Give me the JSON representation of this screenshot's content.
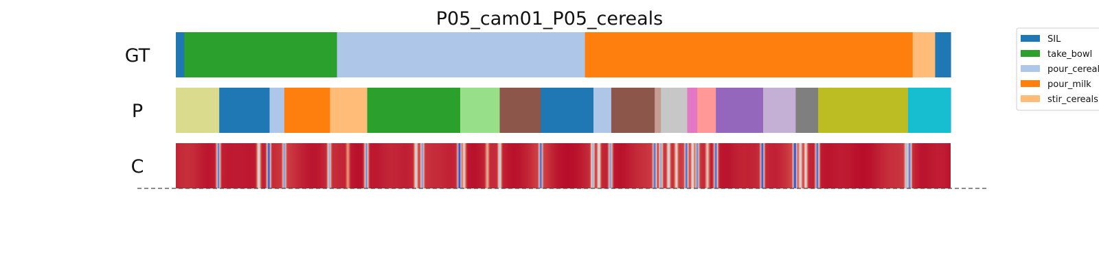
{
  "chart_data": {
    "type": "segmentation-timeline",
    "title": "P05_cam01_P05_cereals",
    "rows": [
      {
        "label": "GT",
        "segments": [
          {
            "start": 0.0,
            "end": 0.011,
            "action": "SIL"
          },
          {
            "start": 0.011,
            "end": 0.208,
            "action": "take_bowl"
          },
          {
            "start": 0.208,
            "end": 0.528,
            "action": "pour_cereals"
          },
          {
            "start": 0.528,
            "end": 0.951,
            "action": "pour_milk"
          },
          {
            "start": 0.951,
            "end": 0.98,
            "action": "stir_cereals"
          },
          {
            "start": 0.98,
            "end": 1.0,
            "action": "SIL"
          }
        ]
      },
      {
        "label": "P",
        "segments": [
          {
            "start": 0.0,
            "end": 0.056,
            "color": "#dbdb8d"
          },
          {
            "start": 0.056,
            "end": 0.121,
            "color": "#1f77b4"
          },
          {
            "start": 0.121,
            "end": 0.14,
            "color": "#aec7e8"
          },
          {
            "start": 0.14,
            "end": 0.199,
            "color": "#ff7f0e"
          },
          {
            "start": 0.199,
            "end": 0.247,
            "color": "#ffbb78"
          },
          {
            "start": 0.247,
            "end": 0.367,
            "color": "#2ca02c"
          },
          {
            "start": 0.367,
            "end": 0.418,
            "color": "#98df8a"
          },
          {
            "start": 0.418,
            "end": 0.471,
            "color": "#8c564b"
          },
          {
            "start": 0.471,
            "end": 0.539,
            "color": "#1f77b4"
          },
          {
            "start": 0.539,
            "end": 0.562,
            "color": "#aec7e8"
          },
          {
            "start": 0.562,
            "end": 0.618,
            "color": "#8c564b"
          },
          {
            "start": 0.618,
            "end": 0.626,
            "color": "#c49c94"
          },
          {
            "start": 0.626,
            "end": 0.66,
            "color": "#c7c7c7"
          },
          {
            "start": 0.66,
            "end": 0.673,
            "color": "#e377c2"
          },
          {
            "start": 0.673,
            "end": 0.697,
            "color": "#ff9896"
          },
          {
            "start": 0.697,
            "end": 0.758,
            "color": "#9467bd"
          },
          {
            "start": 0.758,
            "end": 0.8,
            "color": "#c5b0d5"
          },
          {
            "start": 0.8,
            "end": 0.829,
            "color": "#7f7f7f"
          },
          {
            "start": 0.829,
            "end": 0.945,
            "color": "#bcbd22"
          },
          {
            "start": 0.945,
            "end": 1.0,
            "color": "#17becf"
          }
        ]
      },
      {
        "label": "C",
        "type": "heatmap",
        "base_color": "#b40426",
        "dips": [
          {
            "pos": 0.055,
            "depth": 0.85
          },
          {
            "pos": 0.107,
            "depth": 0.55
          },
          {
            "pos": 0.12,
            "depth": 0.95
          },
          {
            "pos": 0.14,
            "depth": 0.75
          },
          {
            "pos": 0.198,
            "depth": 0.7
          },
          {
            "pos": 0.222,
            "depth": 0.35
          },
          {
            "pos": 0.246,
            "depth": 0.8
          },
          {
            "pos": 0.31,
            "depth": 0.55
          },
          {
            "pos": 0.318,
            "depth": 0.75
          },
          {
            "pos": 0.366,
            "depth": 0.95
          },
          {
            "pos": 0.372,
            "depth": 0.5
          },
          {
            "pos": 0.402,
            "depth": 0.4
          },
          {
            "pos": 0.418,
            "depth": 0.6
          },
          {
            "pos": 0.471,
            "depth": 0.9
          },
          {
            "pos": 0.538,
            "depth": 0.65
          },
          {
            "pos": 0.546,
            "depth": 0.55
          },
          {
            "pos": 0.561,
            "depth": 0.75
          },
          {
            "pos": 0.618,
            "depth": 0.85
          },
          {
            "pos": 0.626,
            "depth": 0.7
          },
          {
            "pos": 0.636,
            "depth": 0.55
          },
          {
            "pos": 0.646,
            "depth": 0.5
          },
          {
            "pos": 0.659,
            "depth": 0.85
          },
          {
            "pos": 0.667,
            "depth": 0.5
          },
          {
            "pos": 0.673,
            "depth": 0.8
          },
          {
            "pos": 0.686,
            "depth": 0.45
          },
          {
            "pos": 0.697,
            "depth": 0.9
          },
          {
            "pos": 0.757,
            "depth": 0.95
          },
          {
            "pos": 0.799,
            "depth": 1.0
          },
          {
            "pos": 0.806,
            "depth": 0.55
          },
          {
            "pos": 0.813,
            "depth": 0.5
          },
          {
            "pos": 0.828,
            "depth": 0.9
          },
          {
            "pos": 0.943,
            "depth": 0.6
          },
          {
            "pos": 0.947,
            "depth": 0.85
          }
        ]
      }
    ],
    "legend": [
      {
        "label": "SIL",
        "color": "#1f77b4"
      },
      {
        "label": "take_bowl",
        "color": "#2ca02c"
      },
      {
        "label": "pour_cereals",
        "color": "#aec7e8"
      },
      {
        "label": "pour_milk",
        "color": "#ff7f0e"
      },
      {
        "label": "stir_cereals",
        "color": "#ffbb78"
      }
    ],
    "legend_position": "top-right",
    "baseline": "dashed",
    "grid": false
  }
}
